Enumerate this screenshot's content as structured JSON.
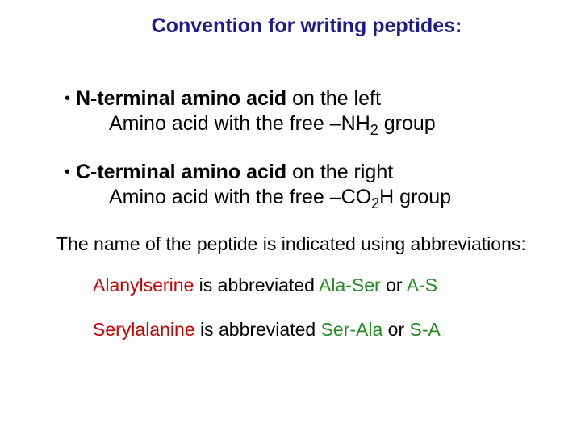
{
  "colors": {
    "title": "#1b1b8e",
    "body": "#000000",
    "term1": "#cc0000",
    "term2": "#cc0000",
    "abbrev1a": "#228b22",
    "abbrev1b": "#228b22",
    "abbrev2a": "#228b22",
    "abbrev2b": "#228b22"
  },
  "fontsize": {
    "title": 25,
    "bullet": 25,
    "body": 23
  },
  "title": "Convention for writing peptides:",
  "bullets": [
    {
      "bold": "N-terminal amino acid",
      "rest": " on the left",
      "sub_pre": "Amino acid with the free –NH",
      "sub_sub": "2",
      "sub_post": " group"
    },
    {
      "bold": "C-terminal amino acid",
      "rest": " on the right",
      "sub_pre": "Amino acid with the free –CO",
      "sub_sub": "2",
      "sub_post": "H group"
    }
  ],
  "body_para": "The name of the peptide is indicated using abbreviations:",
  "abbrev": [
    {
      "term": "Alanylserine",
      "mid": " is abbreviated ",
      "code1": "Ala-Ser",
      "or": " or ",
      "code2": "A-S"
    },
    {
      "term": "Serylalanine",
      "mid": " is abbreviated ",
      "code1": "Ser-Ala",
      "or": " or ",
      "code2": "S-A"
    }
  ]
}
